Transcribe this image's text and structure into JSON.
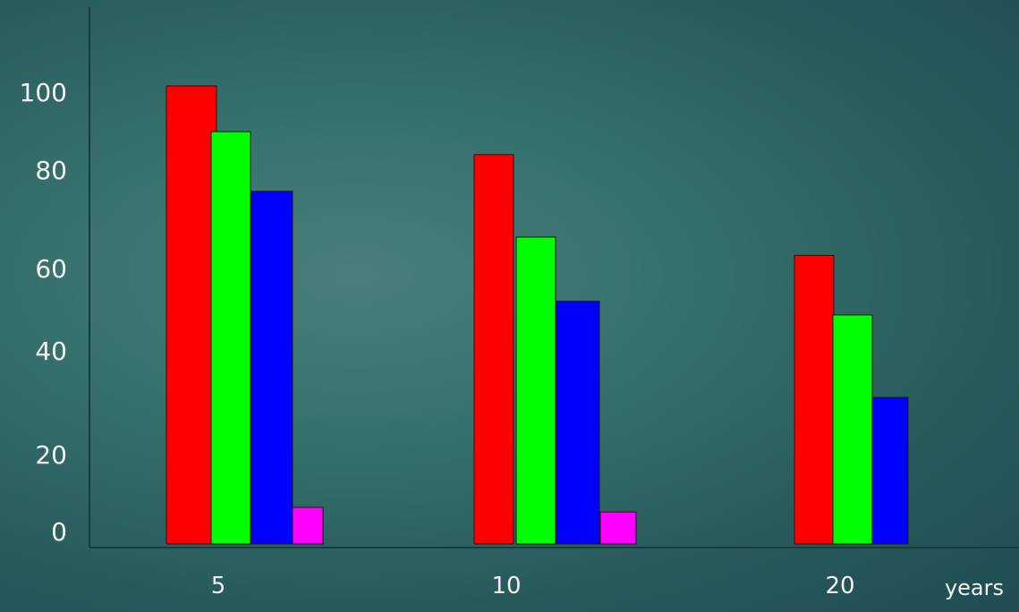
{
  "chart_data": {
    "type": "bar",
    "categories": [
      "5",
      "10",
      "20"
    ],
    "x_unit": "years",
    "series": [
      {
        "color": "#ff0000",
        "values": [
          100,
          85,
          63
        ]
      },
      {
        "color": "#00ff00",
        "values": [
          90,
          67,
          50
        ]
      },
      {
        "color": "#0000ff",
        "values": [
          77,
          53,
          32
        ]
      },
      {
        "color": "#ff00ff",
        "values": [
          8,
          7,
          null
        ]
      }
    ],
    "y_ticks": [
      0,
      20,
      40,
      60,
      80,
      100
    ],
    "ylim": [
      0,
      115
    ],
    "grid": false,
    "legend": "none"
  }
}
